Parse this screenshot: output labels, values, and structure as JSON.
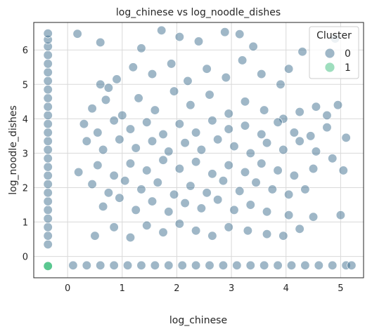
{
  "chart_data": {
    "type": "scatter",
    "title": "log_chinese vs log_noodle_dishes",
    "xlabel": "log_chinese",
    "ylabel": "log_noodle_dishes",
    "xlim": [
      -0.62,
      5.42
    ],
    "ylim": [
      -0.62,
      6.8
    ],
    "x_ticks": [
      0,
      1,
      2,
      3,
      4,
      5
    ],
    "y_ticks": [
      0,
      1,
      2,
      3,
      4,
      5,
      6
    ],
    "grid": true,
    "legend": {
      "title": "Cluster",
      "placement": "top-right",
      "entries": [
        {
          "label": "0",
          "color": "#3f6f8f"
        },
        {
          "label": "1",
          "color": "#3dbd7d"
        }
      ]
    },
    "series": [
      {
        "name": "0",
        "color": "#3f6f8f",
        "points": [
          [
            -0.36,
            0.35
          ],
          [
            -0.36,
            0.6
          ],
          [
            -0.36,
            0.85
          ],
          [
            -0.36,
            1.1
          ],
          [
            -0.36,
            1.35
          ],
          [
            -0.36,
            1.6
          ],
          [
            -0.36,
            1.85
          ],
          [
            -0.36,
            2.1
          ],
          [
            -0.36,
            2.35
          ],
          [
            -0.36,
            2.6
          ],
          [
            -0.36,
            2.85
          ],
          [
            -0.36,
            3.1
          ],
          [
            -0.36,
            3.35
          ],
          [
            -0.36,
            3.6
          ],
          [
            -0.36,
            3.85
          ],
          [
            -0.36,
            4.1
          ],
          [
            -0.36,
            4.35
          ],
          [
            -0.36,
            4.6
          ],
          [
            -0.36,
            4.85
          ],
          [
            -0.36,
            5.1
          ],
          [
            -0.36,
            5.35
          ],
          [
            -0.36,
            5.6
          ],
          [
            -0.36,
            5.85
          ],
          [
            -0.36,
            6.1
          ],
          [
            -0.36,
            6.3
          ],
          [
            -0.36,
            6.48
          ],
          [
            0.1,
            -0.26
          ],
          [
            0.35,
            -0.26
          ],
          [
            0.6,
            -0.26
          ],
          [
            0.85,
            -0.26
          ],
          [
            1.1,
            -0.26
          ],
          [
            1.35,
            -0.26
          ],
          [
            1.6,
            -0.26
          ],
          [
            1.85,
            -0.26
          ],
          [
            2.1,
            -0.26
          ],
          [
            2.35,
            -0.26
          ],
          [
            2.6,
            -0.26
          ],
          [
            2.85,
            -0.26
          ],
          [
            3.1,
            -0.26
          ],
          [
            3.35,
            -0.26
          ],
          [
            3.6,
            -0.26
          ],
          [
            3.85,
            -0.26
          ],
          [
            4.1,
            -0.26
          ],
          [
            4.35,
            -0.26
          ],
          [
            4.6,
            -0.26
          ],
          [
            4.85,
            -0.26
          ],
          [
            5.1,
            -0.26
          ],
          [
            5.2,
            -0.26
          ],
          [
            0.18,
            6.47
          ],
          [
            0.6,
            6.22
          ],
          [
            1.35,
            6.05
          ],
          [
            1.72,
            6.57
          ],
          [
            2.05,
            6.38
          ],
          [
            2.4,
            6.25
          ],
          [
            2.88,
            6.52
          ],
          [
            3.15,
            6.46
          ],
          [
            3.4,
            6.1
          ],
          [
            4.3,
            5.95
          ],
          [
            4.9,
            6.33
          ],
          [
            0.6,
            5.0
          ],
          [
            0.9,
            5.15
          ],
          [
            1.2,
            5.5
          ],
          [
            1.55,
            5.3
          ],
          [
            1.9,
            5.6
          ],
          [
            2.2,
            5.1
          ],
          [
            2.55,
            5.45
          ],
          [
            2.9,
            5.2
          ],
          [
            3.2,
            5.7
          ],
          [
            3.55,
            5.3
          ],
          [
            3.9,
            5.0
          ],
          [
            4.05,
            5.45
          ],
          [
            0.75,
            4.9
          ],
          [
            0.45,
            4.3
          ],
          [
            0.7,
            4.55
          ],
          [
            1.0,
            4.1
          ],
          [
            1.3,
            4.6
          ],
          [
            1.6,
            4.25
          ],
          [
            1.95,
            4.8
          ],
          [
            2.25,
            4.4
          ],
          [
            2.6,
            4.7
          ],
          [
            2.95,
            4.15
          ],
          [
            3.25,
            4.5
          ],
          [
            3.6,
            4.25
          ],
          [
            3.95,
            4.0
          ],
          [
            4.25,
            4.2
          ],
          [
            4.55,
            4.35
          ],
          [
            4.75,
            4.1
          ],
          [
            4.95,
            4.4
          ],
          [
            0.3,
            3.85
          ],
          [
            0.55,
            3.6
          ],
          [
            0.85,
            3.95
          ],
          [
            1.15,
            3.7
          ],
          [
            1.45,
            3.9
          ],
          [
            1.75,
            3.55
          ],
          [
            2.05,
            3.85
          ],
          [
            2.35,
            3.6
          ],
          [
            2.65,
            3.95
          ],
          [
            2.95,
            3.7
          ],
          [
            3.25,
            3.8
          ],
          [
            3.55,
            3.55
          ],
          [
            3.85,
            3.9
          ],
          [
            4.15,
            3.6
          ],
          [
            4.45,
            3.5
          ],
          [
            4.75,
            3.75
          ],
          [
            5.1,
            3.45
          ],
          [
            0.35,
            3.35
          ],
          [
            0.65,
            3.1
          ],
          [
            0.95,
            3.4
          ],
          [
            1.25,
            3.15
          ],
          [
            1.55,
            3.35
          ],
          [
            1.85,
            3.05
          ],
          [
            2.15,
            3.3
          ],
          [
            2.45,
            3.1
          ],
          [
            2.75,
            3.4
          ],
          [
            3.05,
            3.2
          ],
          [
            3.35,
            3.0
          ],
          [
            3.65,
            3.3
          ],
          [
            3.95,
            3.1
          ],
          [
            4.25,
            3.35
          ],
          [
            4.55,
            3.05
          ],
          [
            4.85,
            2.85
          ],
          [
            0.2,
            2.45
          ],
          [
            0.55,
            2.65
          ],
          [
            0.85,
            2.35
          ],
          [
            1.15,
            2.7
          ],
          [
            1.45,
            2.5
          ],
          [
            1.75,
            2.8
          ],
          [
            2.05,
            2.55
          ],
          [
            2.35,
            2.75
          ],
          [
            2.65,
            2.4
          ],
          [
            2.95,
            2.65
          ],
          [
            3.25,
            2.45
          ],
          [
            3.55,
            2.7
          ],
          [
            3.85,
            2.5
          ],
          [
            4.15,
            2.35
          ],
          [
            4.5,
            2.55
          ],
          [
            5.05,
            2.5
          ],
          [
            0.45,
            2.1
          ],
          [
            0.75,
            1.85
          ],
          [
            1.05,
            2.2
          ],
          [
            1.35,
            1.95
          ],
          [
            1.65,
            2.15
          ],
          [
            1.95,
            1.8
          ],
          [
            2.25,
            2.05
          ],
          [
            2.55,
            1.85
          ],
          [
            2.85,
            2.2
          ],
          [
            3.15,
            1.9
          ],
          [
            3.45,
            2.15
          ],
          [
            3.75,
            1.95
          ],
          [
            4.05,
            1.8
          ],
          [
            4.35,
            1.95
          ],
          [
            0.65,
            1.45
          ],
          [
            0.95,
            1.7
          ],
          [
            1.25,
            1.35
          ],
          [
            1.55,
            1.6
          ],
          [
            1.85,
            1.3
          ],
          [
            2.15,
            1.55
          ],
          [
            2.45,
            1.4
          ],
          [
            2.75,
            1.65
          ],
          [
            3.05,
            1.35
          ],
          [
            3.35,
            1.5
          ],
          [
            3.65,
            1.3
          ],
          [
            4.05,
            1.2
          ],
          [
            4.5,
            1.15
          ],
          [
            5.0,
            1.2
          ],
          [
            0.5,
            0.6
          ],
          [
            0.85,
            0.85
          ],
          [
            1.15,
            0.55
          ],
          [
            1.45,
            0.9
          ],
          [
            1.75,
            0.7
          ],
          [
            2.05,
            0.95
          ],
          [
            2.35,
            0.75
          ],
          [
            2.65,
            0.6
          ],
          [
            2.95,
            0.85
          ],
          [
            3.3,
            0.75
          ],
          [
            3.65,
            0.65
          ],
          [
            3.95,
            0.6
          ],
          [
            4.25,
            0.8
          ]
        ]
      },
      {
        "name": "1",
        "color": "#3dbd7d",
        "points": [
          [
            -0.36,
            -0.28
          ]
        ]
      }
    ]
  }
}
